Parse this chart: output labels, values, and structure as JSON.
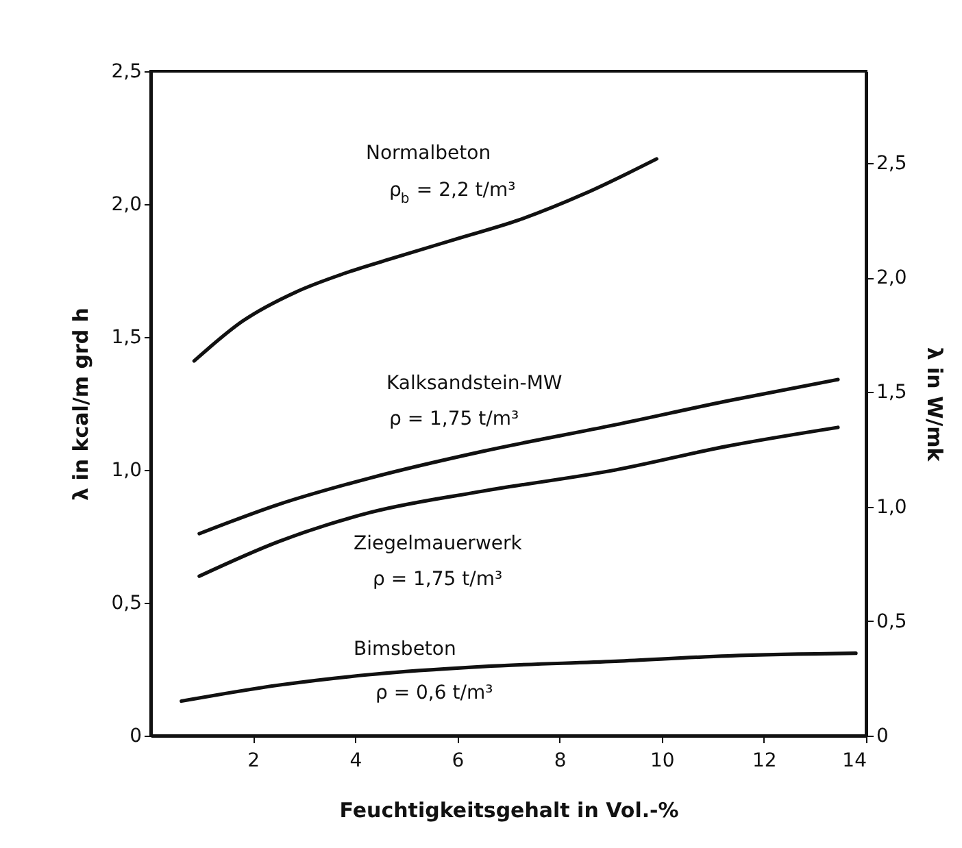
{
  "chart_data": {
    "type": "line",
    "xlabel": "Feuchtigkeitsgehalt in Vol.-%",
    "ylabel": "λ in kcal/m grd h",
    "y2label": "λ in W/mk",
    "xlim": [
      0,
      14
    ],
    "xticks": [
      2,
      4,
      6,
      8,
      10,
      12,
      14
    ],
    "ylim": [
      0,
      2.5
    ],
    "yticks": [
      {
        "value": 0,
        "label": "0"
      },
      {
        "value": 0.5,
        "label": "0,5"
      },
      {
        "value": 1.0,
        "label": "1,0"
      },
      {
        "value": 1.5,
        "label": "1,5"
      },
      {
        "value": 2.0,
        "label": "2,0"
      },
      {
        "value": 2.5,
        "label": "2,5"
      }
    ],
    "y2lim": [
      0,
      2.9
    ],
    "y2ticks": [
      {
        "value": 0,
        "label": "0"
      },
      {
        "value": 0.5,
        "label": "0,5"
      },
      {
        "value": 1.0,
        "label": "1,0"
      },
      {
        "value": 1.5,
        "label": "1,5"
      },
      {
        "value": 2.0,
        "label": "2,0"
      },
      {
        "value": 2.5,
        "label": "2,5"
      }
    ],
    "grid": false,
    "legend": false,
    "marker": "none",
    "line_style": "solid",
    "series": [
      {
        "color": "#111111",
        "x": [
          0.85,
          1.8,
          2.85,
          3.8,
          4.8,
          6.0,
          7.2,
          8.5,
          9.9
        ],
        "values": [
          1.41,
          1.56,
          1.67,
          1.74,
          1.8,
          1.87,
          1.94,
          2.04,
          2.17
        ]
      },
      {
        "color": "#111111",
        "x": [
          0.95,
          2.5,
          4.3,
          6.5,
          9.1,
          11.3,
          13.45
        ],
        "values": [
          0.76,
          0.87,
          0.97,
          1.07,
          1.17,
          1.26,
          1.34
        ]
      },
      {
        "color": "#111111",
        "x": [
          0.95,
          2.5,
          4.3,
          6.5,
          9.1,
          11.3,
          13.45
        ],
        "values": [
          0.6,
          0.73,
          0.84,
          0.92,
          1.0,
          1.09,
          1.16
        ]
      },
      {
        "color": "#111111",
        "x": [
          0.6,
          2.5,
          4.3,
          6.5,
          9.1,
          11.3,
          13.8
        ],
        "values": [
          0.13,
          0.19,
          0.23,
          0.26,
          0.28,
          0.3,
          0.31
        ]
      }
    ],
    "annotations": [
      "Normalbeton",
      "ρ$_{b}$ = 2,2 t/m³",
      "Kalksandstein-MW",
      "ρ = 1,75 t/m³",
      "Ziegelmauerwerk",
      "ρ = 1,75 t/m³",
      "Bimsbeton",
      "ρ = 0,6 t/m³"
    ]
  }
}
